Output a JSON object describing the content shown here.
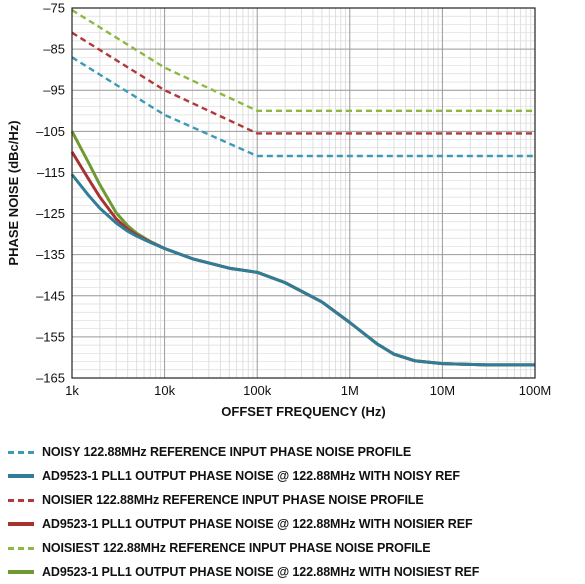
{
  "chart_data": {
    "type": "line",
    "xlabel": "OFFSET FREQUENCY (Hz)",
    "ylabel": "PHASE NOISE (dBc/Hz)",
    "x_scale": "log",
    "xlim": [
      1000,
      100000000
    ],
    "ylim": [
      -165,
      -75
    ],
    "x_ticks": [
      1000,
      10000,
      100000,
      1000000,
      10000000,
      100000000
    ],
    "x_tick_labels": [
      "1k",
      "10k",
      "100k",
      "1M",
      "10M",
      "100M"
    ],
    "y_ticks": [
      -75,
      -85,
      -95,
      -105,
      -115,
      -125,
      -135,
      -145,
      -155,
      -165
    ],
    "y_tick_labels": [
      "–75",
      "–85",
      "–95",
      "–105",
      "–115",
      "–125",
      "–135",
      "–145",
      "–155",
      "–165"
    ],
    "grid": true,
    "legend_position": "bottom",
    "series": [
      {
        "name": "NOISY 122.88MHz REFERENCE INPUT PHASE NOISE PROFILE",
        "color": "#3b9bb5",
        "style": "dashed",
        "x": [
          1000,
          10000,
          100000,
          100000000
        ],
        "y": [
          -87,
          -101,
          -111,
          -111
        ]
      },
      {
        "name": "AD9523-1 PLL1 OUTPUT PHASE NOISE @ 122.88MHz WITH NOISY REF",
        "color": "#2f7d96",
        "style": "solid",
        "x": [
          1000,
          1500,
          2000,
          3000,
          4000,
          5000,
          7000,
          10000,
          20000,
          50000,
          100000,
          200000,
          500000,
          1000000,
          2000000,
          3000000,
          5000000,
          10000000,
          30000000,
          100000000
        ],
        "y": [
          -115.5,
          -120.5,
          -123.7,
          -127.3,
          -129.3,
          -130.5,
          -132,
          -133.5,
          -136,
          -138.3,
          -139.3,
          -141.8,
          -146.5,
          -151.5,
          -156.8,
          -159.2,
          -160.8,
          -161.5,
          -161.8,
          -161.8
        ]
      },
      {
        "name": "NOISIER 122.88MHz REFERENCE INPUT PHASE NOISE PROFILE",
        "color": "#b03a3a",
        "style": "dashed",
        "x": [
          1000,
          10000,
          100000,
          100000000
        ],
        "y": [
          -81,
          -95,
          -105.5,
          -105.5
        ]
      },
      {
        "name": "AD9523-1 PLL1 OUTPUT PHASE NOISE @ 122.88MHz WITH NOISIER REF",
        "color": "#a8322f",
        "style": "solid",
        "x": [
          1000,
          1500,
          2000,
          3000,
          4000,
          5000,
          7000,
          10000,
          20000,
          50000,
          100000,
          200000,
          500000,
          1000000,
          2000000,
          3000000,
          5000000,
          10000000,
          30000000,
          100000000
        ],
        "y": [
          -110,
          -116.5,
          -121,
          -126.3,
          -128.8,
          -130.2,
          -131.9,
          -133.5,
          -136,
          -138.3,
          -139.3,
          -141.8,
          -146.5,
          -151.5,
          -156.8,
          -159.2,
          -160.8,
          -161.5,
          -161.8,
          -161.8
        ]
      },
      {
        "name": "NOISIEST 122.88MHz REFERENCE INPUT PHASE NOISE PROFILE",
        "color": "#8db842",
        "style": "dashed",
        "x": [
          1000,
          10000,
          100000,
          100000000
        ],
        "y": [
          -75.5,
          -89.5,
          -100,
          -100
        ]
      },
      {
        "name": "AD9523-1 PLL1 OUTPUT PHASE NOISE @ 122.88MHz WITH NOISIEST REF",
        "color": "#6f9a32",
        "style": "solid",
        "x": [
          1000,
          1500,
          2000,
          3000,
          4000,
          5000,
          7000,
          10000,
          20000,
          50000,
          100000,
          200000,
          500000,
          1000000,
          2000000,
          3000000,
          5000000,
          10000000,
          30000000,
          100000000
        ],
        "y": [
          -105,
          -112.5,
          -118,
          -124.8,
          -128,
          -129.8,
          -131.8,
          -133.5,
          -136,
          -138.3,
          -139.3,
          -141.8,
          -146.5,
          -151.5,
          -156.8,
          -159.2,
          -160.8,
          -161.5,
          -161.8,
          -161.8
        ]
      }
    ]
  }
}
